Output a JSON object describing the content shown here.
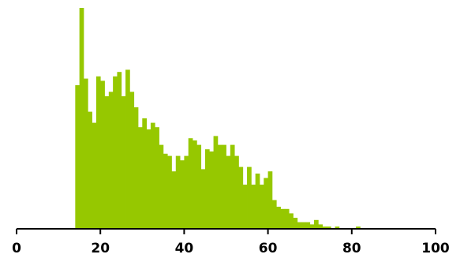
{
  "chart_data": {
    "type": "bar",
    "title": "",
    "xlabel": "",
    "ylabel": "",
    "xlim": [
      0,
      100
    ],
    "ylim": [
      0,
      100
    ],
    "bin_width": 1,
    "grid": false,
    "legend": "none",
    "bar_color": "#96c800",
    "axis_color": "#000000",
    "xticks": [
      {
        "value": 0,
        "label": "0"
      },
      {
        "value": 20,
        "label": "20"
      },
      {
        "value": 40,
        "label": "40"
      },
      {
        "value": 60,
        "label": "60"
      },
      {
        "value": 80,
        "label": "80"
      },
      {
        "value": 100,
        "label": "100"
      }
    ],
    "x": [
      14,
      15,
      16,
      17,
      18,
      19,
      20,
      21,
      22,
      23,
      24,
      25,
      26,
      27,
      28,
      29,
      30,
      31,
      32,
      33,
      34,
      35,
      36,
      37,
      38,
      39,
      40,
      41,
      42,
      43,
      44,
      45,
      46,
      47,
      48,
      49,
      50,
      51,
      52,
      53,
      54,
      55,
      56,
      57,
      58,
      59,
      60,
      61,
      62,
      63,
      64,
      65,
      66,
      67,
      68,
      69,
      70,
      71,
      72,
      73,
      74,
      75,
      76,
      77,
      78,
      79,
      80,
      81
    ],
    "values": [
      65,
      100,
      68,
      53,
      48,
      69,
      67,
      60,
      62,
      69,
      71,
      60,
      72,
      62,
      55,
      46,
      50,
      45,
      48,
      46,
      38,
      34,
      33,
      26,
      33,
      31,
      33,
      41,
      40,
      38,
      27,
      36,
      35,
      42,
      38,
      38,
      33,
      38,
      33,
      28,
      20,
      28,
      20,
      25,
      20,
      23,
      26,
      13,
      10,
      9,
      9,
      7,
      5,
      3,
      3,
      3,
      2,
      4,
      2,
      1,
      1,
      0,
      1,
      0,
      0,
      0,
      0,
      1
    ]
  }
}
